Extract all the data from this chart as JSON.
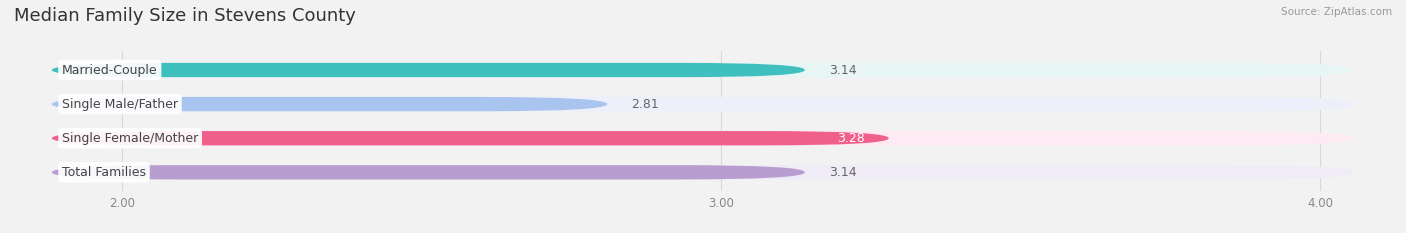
{
  "title": "Median Family Size in Stevens County",
  "source": "Source: ZipAtlas.com",
  "categories": [
    "Married-Couple",
    "Single Male/Father",
    "Single Female/Mother",
    "Total Families"
  ],
  "values": [
    3.14,
    2.81,
    3.28,
    3.14
  ],
  "bar_colors": [
    "#40bfbf",
    "#aac4f0",
    "#f0608a",
    "#b89ed0"
  ],
  "bar_bg_colors": [
    "#e8f5f5",
    "#edf0fa",
    "#fdeaf2",
    "#f0ecf7"
  ],
  "value_label_inside": [
    false,
    false,
    true,
    false
  ],
  "xlim_min": 1.82,
  "xlim_max": 4.12,
  "xticks": [
    2.0,
    3.0,
    4.0
  ],
  "xtick_labels": [
    "2.00",
    "3.00",
    "4.00"
  ],
  "bar_height": 0.42,
  "bar_gap": 1.0,
  "title_fontsize": 13,
  "label_fontsize": 9,
  "value_fontsize": 9,
  "tick_fontsize": 8.5,
  "background_color": "#f2f2f2",
  "grid_color": "#d8d8d8",
  "label_text_color": "#444444",
  "value_text_color_outside": "#666666",
  "value_text_color_inside": "#ffffff"
}
